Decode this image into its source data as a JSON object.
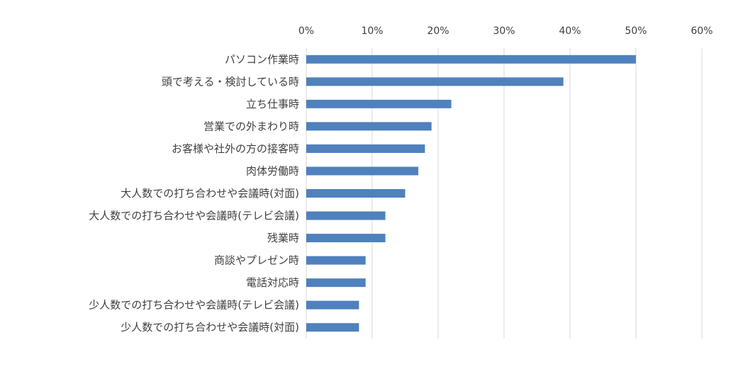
{
  "chart_data": {
    "type": "bar",
    "orientation": "horizontal",
    "categories": [
      "パソコン作業時",
      "頭で考える・検討している時",
      "立ち仕事時",
      "営業での外まわり時",
      "お客様や社外の方の接客時",
      "肉体労働時",
      "大人数での打ち合わせや会議時(対面)",
      "大人数での打ち合わせや会議時(テレビ会議)",
      "残業時",
      "商談やプレゼン時",
      "電話対応時",
      "少人数での打ち合わせや会議時(テレビ会議)",
      "少人数での打ち合わせや会議時(対面)"
    ],
    "values": [
      50,
      39,
      22,
      19,
      18,
      17,
      15,
      12,
      12,
      9,
      9,
      8,
      8
    ],
    "title": "",
    "xlabel": "",
    "ylabel": "",
    "xlim": [
      0,
      60
    ],
    "x_ticks": [
      "0%",
      "10%",
      "20%",
      "30%",
      "40%",
      "50%",
      "60%"
    ],
    "x_axis_position": "top",
    "grid": true,
    "legend": "none",
    "bar_color": "#4f81bd"
  }
}
